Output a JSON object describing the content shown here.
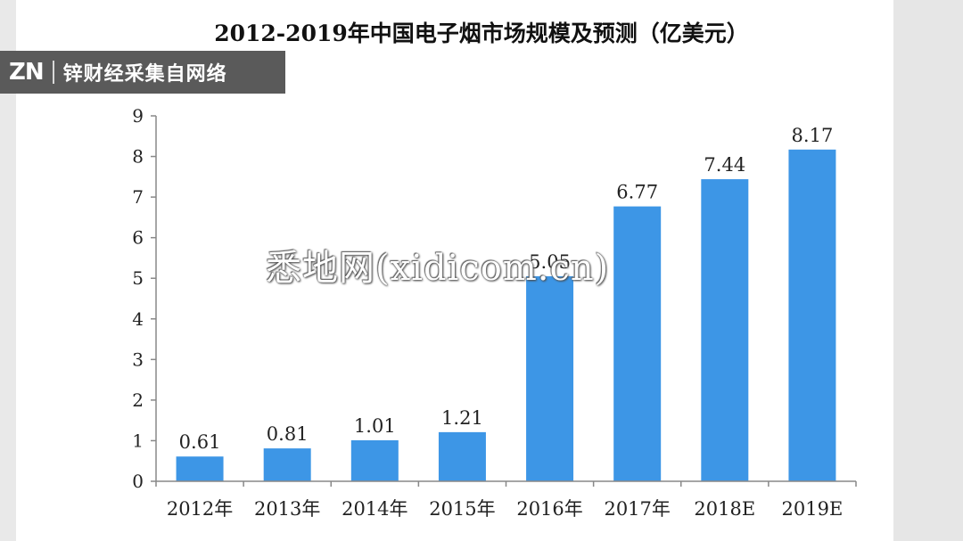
{
  "overlay": {
    "logo": "ZN",
    "source": "锌财经采集自网络",
    "watermark": "悉地网(xidicom.cn)"
  },
  "chart_data": {
    "type": "bar",
    "title": "2012-2019年中国电子烟市场规模及预测（亿美元）",
    "categories": [
      "2012年",
      "2013年",
      "2014年",
      "2015年",
      "2016年",
      "2017年",
      "2018E",
      "2019E"
    ],
    "values": [
      0.61,
      0.81,
      1.01,
      1.21,
      5.05,
      6.77,
      7.44,
      8.17
    ],
    "value_labels": [
      "0.61",
      "0.81",
      "1.01",
      "1.21",
      "5.05",
      "6.77",
      "7.44",
      "8.17"
    ],
    "yticks": [
      "0",
      "1",
      "2",
      "3",
      "4",
      "5",
      "6",
      "7",
      "8",
      "9"
    ],
    "ylim": [
      0,
      9
    ],
    "xlabel": "",
    "ylabel": "",
    "grid": false,
    "bar_color": "#3d96e6"
  }
}
